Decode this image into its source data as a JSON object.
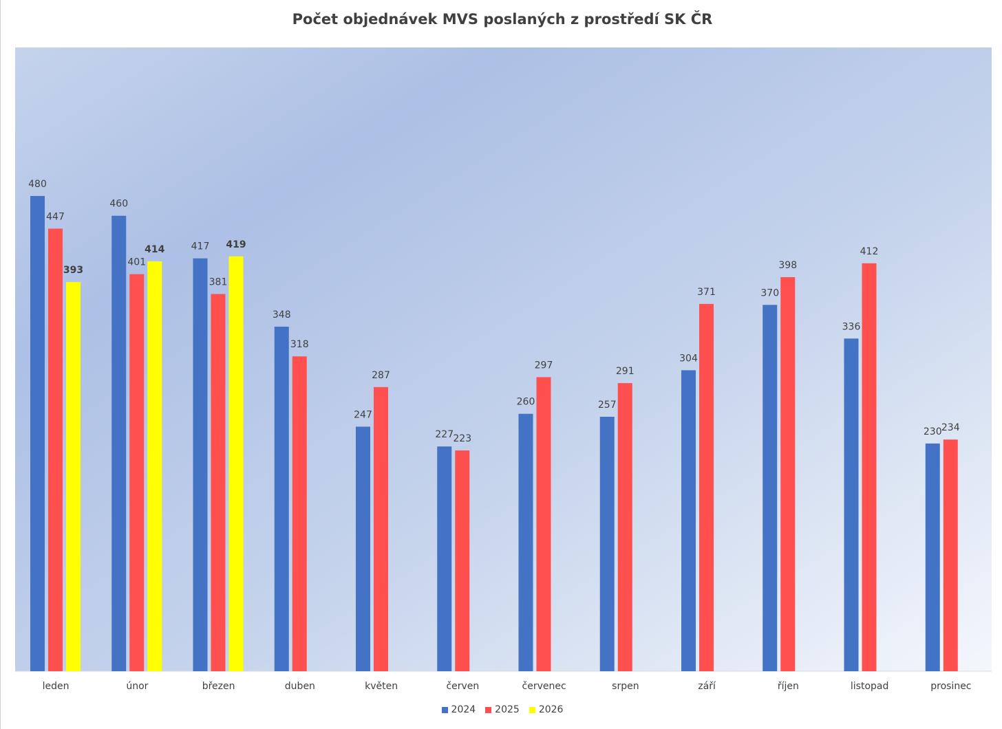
{
  "chart_data": {
    "type": "bar",
    "title": "Počet objednávek MVS poslaných z prostředí SK ČR",
    "categories": [
      "leden",
      "únor",
      "březen",
      "duben",
      "květen",
      "červen",
      "červenec",
      "srpen",
      "září",
      "říjen",
      "listopad",
      "prosinec"
    ],
    "series": [
      {
        "name": "2024",
        "color": "#4472C4",
        "values": [
          480,
          460,
          417,
          348,
          247,
          227,
          260,
          257,
          304,
          370,
          336,
          230
        ]
      },
      {
        "name": "2025",
        "color": "#FF4F4F",
        "values": [
          447,
          401,
          381,
          318,
          287,
          223,
          297,
          291,
          371,
          398,
          412,
          234
        ]
      },
      {
        "name": "2026",
        "color": "#FFFF00",
        "values": [
          393,
          414,
          419,
          null,
          null,
          null,
          null,
          null,
          null,
          null,
          null,
          null
        ]
      }
    ],
    "ylim": [
      0,
      630
    ],
    "grid": false,
    "legend": "bottom"
  }
}
